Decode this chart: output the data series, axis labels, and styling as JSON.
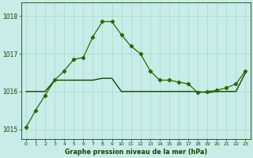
{
  "title": "Graphe pression niveau de la mer (hPa)",
  "background_color": "#c8ede8",
  "grid_color": "#a8d8cc",
  "line_color_main": "#2a6800",
  "line_color_flat": "#1a4000",
  "xlim": [
    -0.5,
    23.5
  ],
  "ylim": [
    1014.75,
    1018.35
  ],
  "yticks": [
    1015,
    1016,
    1017,
    1018
  ],
  "xticks": [
    0,
    1,
    2,
    3,
    4,
    5,
    6,
    7,
    8,
    9,
    10,
    11,
    12,
    13,
    14,
    15,
    16,
    17,
    18,
    19,
    20,
    21,
    22,
    23
  ],
  "series1_x": [
    0,
    1,
    2,
    3,
    4,
    5,
    6,
    7,
    8,
    9,
    10,
    11,
    12,
    13,
    14,
    15,
    16,
    17,
    18,
    19,
    20,
    21,
    22,
    23
  ],
  "series1_y": [
    1015.05,
    1015.5,
    1015.9,
    1016.3,
    1016.55,
    1016.85,
    1016.9,
    1017.45,
    1017.85,
    1017.85,
    1017.5,
    1017.2,
    1017.0,
    1016.55,
    1016.3,
    1016.3,
    1016.25,
    1016.2,
    1015.97,
    1016.0,
    1016.03,
    1016.1,
    1016.2,
    1016.55
  ],
  "series2_x": [
    0,
    1,
    2,
    3,
    4,
    5,
    6,
    7,
    8,
    9,
    10,
    11,
    12,
    13,
    14,
    15,
    16,
    17,
    18,
    19,
    20,
    21,
    22,
    23
  ],
  "series2_y": [
    1016.0,
    1016.0,
    1016.0,
    1016.3,
    1016.3,
    1016.3,
    1016.3,
    1016.3,
    1016.35,
    1016.35,
    1016.0,
    1016.0,
    1016.0,
    1016.0,
    1016.0,
    1016.0,
    1016.0,
    1016.0,
    1016.0,
    1015.97,
    1016.0,
    1016.0,
    1016.0,
    1016.5
  ]
}
